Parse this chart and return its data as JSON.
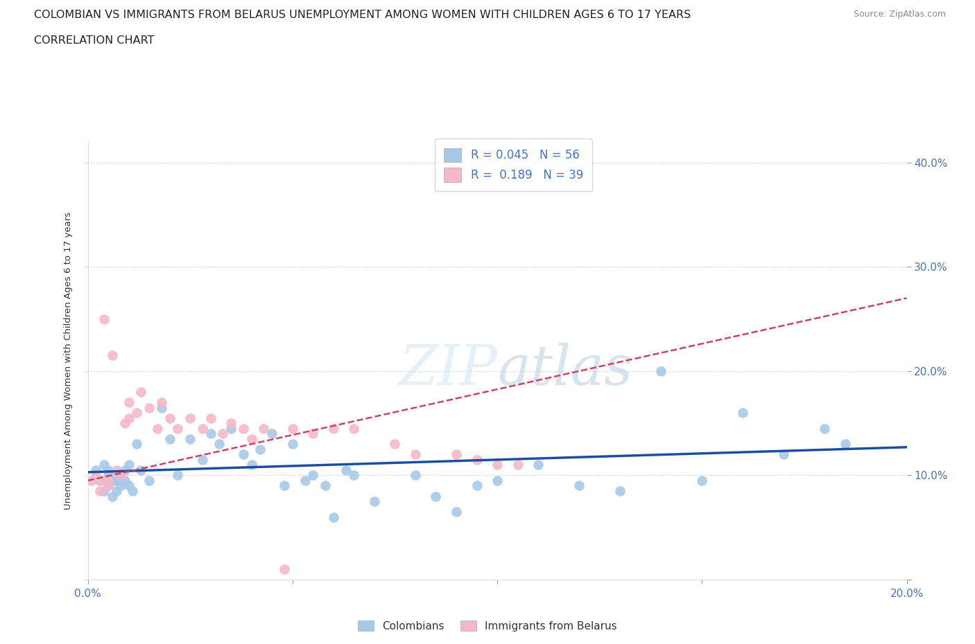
{
  "title_line1": "COLOMBIAN VS IMMIGRANTS FROM BELARUS UNEMPLOYMENT AMONG WOMEN WITH CHILDREN AGES 6 TO 17 YEARS",
  "title_line2": "CORRELATION CHART",
  "source": "Source: ZipAtlas.com",
  "ylabel": "Unemployment Among Women with Children Ages 6 to 17 years",
  "xlim": [
    0.0,
    0.2
  ],
  "ylim": [
    0.0,
    0.42
  ],
  "yticks": [
    0.0,
    0.1,
    0.2,
    0.3,
    0.4
  ],
  "xticks": [
    0.0,
    0.05,
    0.1,
    0.15,
    0.2
  ],
  "xtick_labels": [
    "0.0%",
    "",
    "",
    "",
    "20.0%"
  ],
  "ytick_labels": [
    "",
    "10.0%",
    "20.0%",
    "30.0%",
    "40.0%"
  ],
  "watermark": "ZIPatlas",
  "blue_color": "#a8c8e8",
  "pink_color": "#f4b8c8",
  "line_blue": "#1a4fa0",
  "line_pink": "#d04060",
  "legend_R_blue": "0.045",
  "legend_N_blue": "56",
  "legend_R_pink": "0.189",
  "legend_N_pink": "39",
  "colombians_x": [
    0.002,
    0.003,
    0.004,
    0.004,
    0.005,
    0.005,
    0.005,
    0.006,
    0.006,
    0.007,
    0.007,
    0.008,
    0.008,
    0.009,
    0.009,
    0.01,
    0.01,
    0.011,
    0.012,
    0.013,
    0.015,
    0.018,
    0.02,
    0.022,
    0.025,
    0.028,
    0.03,
    0.032,
    0.035,
    0.038,
    0.04,
    0.042,
    0.045,
    0.048,
    0.05,
    0.053,
    0.055,
    0.058,
    0.06,
    0.063,
    0.065,
    0.07,
    0.08,
    0.085,
    0.09,
    0.095,
    0.1,
    0.11,
    0.12,
    0.13,
    0.14,
    0.15,
    0.16,
    0.17,
    0.18,
    0.185
  ],
  "colombians_y": [
    0.105,
    0.095,
    0.11,
    0.085,
    0.09,
    0.1,
    0.105,
    0.095,
    0.08,
    0.095,
    0.085,
    0.09,
    0.1,
    0.105,
    0.095,
    0.11,
    0.09,
    0.085,
    0.13,
    0.105,
    0.095,
    0.165,
    0.135,
    0.1,
    0.135,
    0.115,
    0.14,
    0.13,
    0.145,
    0.12,
    0.11,
    0.125,
    0.14,
    0.09,
    0.13,
    0.095,
    0.1,
    0.09,
    0.06,
    0.105,
    0.1,
    0.075,
    0.1,
    0.08,
    0.065,
    0.09,
    0.095,
    0.11,
    0.09,
    0.085,
    0.2,
    0.095,
    0.16,
    0.12,
    0.145,
    0.13
  ],
  "belarus_x": [
    0.001,
    0.002,
    0.003,
    0.003,
    0.004,
    0.005,
    0.005,
    0.006,
    0.007,
    0.008,
    0.009,
    0.01,
    0.01,
    0.012,
    0.013,
    0.015,
    0.017,
    0.018,
    0.02,
    0.022,
    0.025,
    0.028,
    0.03,
    0.033,
    0.035,
    0.038,
    0.04,
    0.043,
    0.048,
    0.05,
    0.055,
    0.06,
    0.065,
    0.075,
    0.08,
    0.09,
    0.095,
    0.1,
    0.105
  ],
  "belarus_y": [
    0.095,
    0.1,
    0.085,
    0.095,
    0.25,
    0.09,
    0.095,
    0.215,
    0.105,
    0.1,
    0.15,
    0.155,
    0.17,
    0.16,
    0.18,
    0.165,
    0.145,
    0.17,
    0.155,
    0.145,
    0.155,
    0.145,
    0.155,
    0.14,
    0.15,
    0.145,
    0.135,
    0.145,
    0.01,
    0.145,
    0.14,
    0.145,
    0.145,
    0.13,
    0.12,
    0.12,
    0.115,
    0.11,
    0.11
  ]
}
